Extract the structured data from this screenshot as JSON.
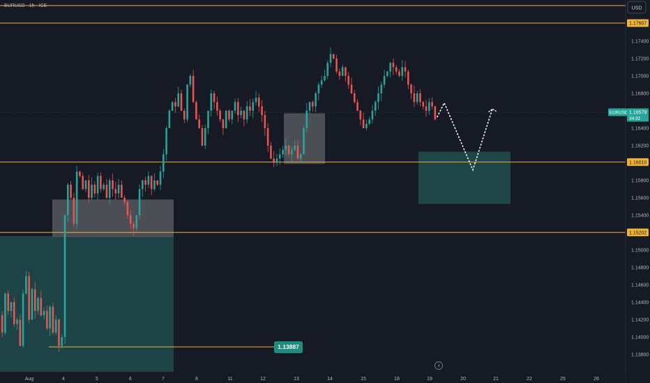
{
  "symbol_title": "EURUSD · 1h · ICE",
  "currency_button": "USD",
  "colors": {
    "background": "#161a25",
    "up": "#26a69a",
    "down": "#ef5350",
    "level_line": "#f0b43a",
    "zone_teal": "#1f4b4e",
    "zone_gray": "#5d6066"
  },
  "chart_data": {
    "type": "candlestick",
    "title": "EURUSD · 1h · ICE",
    "ylim": [
      1.1365,
      1.1795
    ],
    "y_ticks": [
      "1.17400",
      "1.17200",
      "1.17000",
      "1.16800",
      "1.16400",
      "1.16200",
      "1.15800",
      "1.15600",
      "1.15400",
      "1.15000",
      "1.14800",
      "1.14600",
      "1.14400",
      "1.14200",
      "1.14000",
      "1.13800"
    ],
    "x_ticks": [
      "Aug",
      "4",
      "5",
      "6",
      "7",
      "8",
      "11",
      "12",
      "13",
      "14",
      "15",
      "18",
      "19",
      "20",
      "21",
      "22",
      "25",
      "26"
    ],
    "horizontal_levels": [
      {
        "label": "1.17607",
        "value": 1.17607
      },
      {
        "label": "1.16010",
        "value": 1.1601
      },
      {
        "label": "1.15202",
        "value": 1.15202
      }
    ],
    "top_line_value": 1.179,
    "current_price": {
      "symbol": "EURUSD",
      "price": "1.16579",
      "countdown": "34:32",
      "value": 1.16579
    },
    "low_marker": {
      "label": "1.13887",
      "value": 1.13887
    },
    "zones": [
      {
        "kind": "demand",
        "from_date": "Jul 31",
        "to_date": "Aug 7",
        "top": 1.1516,
        "bottom": 1.136
      },
      {
        "kind": "order-block",
        "from_date": "Aug 4",
        "to_date": "Aug 7",
        "top": 1.1558,
        "bottom": 1.1515
      },
      {
        "kind": "order-block",
        "from_date": "Aug 12",
        "to_date": "Aug 13",
        "top": 1.1657,
        "bottom": 1.1599
      },
      {
        "kind": "target",
        "from_date": "Aug 18",
        "to_date": "Aug 21",
        "top": 1.1613,
        "bottom": 1.1553
      }
    ],
    "projection": [
      1.1653,
      1.1669,
      1.1592,
      1.1662
    ],
    "price_path": [
      1.1425,
      1.1405,
      1.145,
      1.143,
      1.144,
      1.1415,
      1.142,
      1.139,
      1.145,
      1.147,
      1.142,
      1.1455,
      1.143,
      1.1445,
      1.1425,
      1.143,
      1.141,
      1.1435,
      1.1405,
      1.142,
      1.139,
      1.14,
      1.154,
      1.1575,
      1.156,
      1.153,
      1.159,
      1.1585,
      1.157,
      1.158,
      1.156,
      1.1575,
      1.1565,
      1.1585,
      1.157,
      1.1575,
      1.156,
      1.158,
      1.157,
      1.1565,
      1.1575,
      1.156,
      1.1555,
      1.154,
      1.153,
      1.1525,
      1.154,
      1.157,
      1.158,
      1.1575,
      1.1585,
      1.157,
      1.158,
      1.1575,
      1.159,
      1.161,
      1.164,
      1.166,
      1.167,
      1.1665,
      1.168,
      1.166,
      1.165,
      1.169,
      1.17,
      1.167,
      1.165,
      1.164,
      1.162,
      1.164,
      1.166,
      1.168,
      1.167,
      1.166,
      1.165,
      1.164,
      1.166,
      1.165,
      1.166,
      1.167,
      1.1655,
      1.166,
      1.165,
      1.1665,
      1.166,
      1.167,
      1.1675,
      1.1665,
      1.1655,
      1.164,
      1.162,
      1.1605,
      1.16,
      1.1605,
      1.161,
      1.1615,
      1.162,
      1.161,
      1.1615,
      1.162,
      1.1605,
      1.161,
      1.164,
      1.166,
      1.167,
      1.1665,
      1.168,
      1.169,
      1.1695,
      1.17,
      1.1715,
      1.1725,
      1.172,
      1.1705,
      1.17,
      1.171,
      1.17,
      1.169,
      1.168,
      1.167,
      1.166,
      1.165,
      1.164,
      1.1645,
      1.165,
      1.166,
      1.167,
      1.168,
      1.169,
      1.17,
      1.1705,
      1.1715,
      1.171,
      1.1705,
      1.17,
      1.171,
      1.1705,
      1.169,
      1.168,
      1.167,
      1.168,
      1.167,
      1.1665,
      1.166,
      1.167,
      1.1665,
      1.165
    ]
  }
}
